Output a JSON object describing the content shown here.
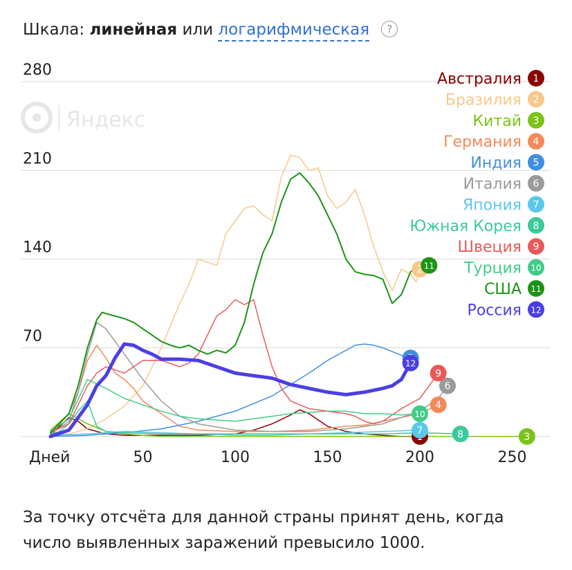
{
  "header": {
    "scale_label": "Шкала:",
    "scale_linear": "линейная",
    "scale_or": "или",
    "scale_log": "логарифмическая",
    "help_icon": "?"
  },
  "watermark": {
    "text": "Яндекс",
    "icon": "yandex-logo-icon"
  },
  "footnote": "За точку отсчёта для данной страны принят день, когда число выявленных заражений превысило 1000.",
  "chart_data": {
    "type": "line",
    "xlabel": "Дней",
    "ylabel": "",
    "xlim": [
      0,
      265
    ],
    "ylim": [
      0,
      280
    ],
    "x_ticks": [
      50,
      100,
      150,
      200,
      250
    ],
    "y_ticks": [
      70,
      140,
      210,
      280
    ],
    "legend_position": "top-right",
    "grid": true,
    "series": [
      {
        "name": "Австралия",
        "number": "1",
        "color": "#8a0000",
        "width": 1.5,
        "x": [
          0,
          5,
          10,
          15,
          20,
          30,
          40,
          60,
          80,
          100,
          110,
          120,
          130,
          135,
          140,
          150,
          160,
          170,
          180,
          190,
          200
        ],
        "y": [
          1,
          8,
          15,
          12,
          6,
          2,
          1,
          1,
          1,
          2,
          5,
          10,
          17,
          21,
          18,
          8,
          4,
          2,
          1,
          0,
          0
        ]
      },
      {
        "name": "Бразилия",
        "number": "2",
        "color": "#f8c88a",
        "width": 1.5,
        "x": [
          0,
          10,
          20,
          30,
          40,
          50,
          60,
          70,
          75,
          80,
          90,
          95,
          100,
          105,
          110,
          115,
          120,
          125,
          130,
          135,
          140,
          145,
          150,
          155,
          160,
          165,
          170,
          175,
          180,
          185,
          190,
          195,
          198,
          200
        ],
        "y": [
          0,
          2,
          6,
          14,
          24,
          40,
          70,
          105,
          120,
          140,
          135,
          160,
          170,
          180,
          182,
          175,
          170,
          205,
          222,
          220,
          210,
          212,
          190,
          180,
          185,
          195,
          175,
          150,
          130,
          115,
          132,
          128,
          122,
          132
        ]
      },
      {
        "name": "Китай",
        "number": "3",
        "color": "#7cc21a",
        "width": 1.5,
        "x": [
          0,
          10,
          20,
          30,
          40,
          50,
          60,
          100,
          150,
          200,
          258
        ],
        "y": [
          5,
          18,
          10,
          4,
          2,
          1,
          0,
          0,
          0,
          0,
          0
        ]
      },
      {
        "name": "Германия",
        "number": "4",
        "color": "#f3895a",
        "width": 1.5,
        "x": [
          0,
          10,
          15,
          20,
          25,
          30,
          35,
          40,
          45,
          50,
          60,
          70,
          80,
          100,
          120,
          140,
          160,
          170,
          180,
          190,
          200,
          210
        ],
        "y": [
          2,
          18,
          35,
          60,
          72,
          62,
          50,
          45,
          38,
          28,
          18,
          8,
          5,
          4,
          4,
          5,
          8,
          9,
          12,
          15,
          18,
          25
        ]
      },
      {
        "name": "Индия",
        "number": "5",
        "color": "#3f8fe0",
        "width": 1.5,
        "x": [
          0,
          20,
          40,
          60,
          80,
          100,
          120,
          140,
          150,
          160,
          165,
          170,
          175,
          180,
          185,
          190,
          195
        ],
        "y": [
          0,
          1,
          3,
          6,
          12,
          20,
          32,
          50,
          60,
          68,
          72,
          73,
          72,
          70,
          67,
          64,
          62
        ]
      },
      {
        "name": "Италия",
        "number": "6",
        "color": "#9a9a9a",
        "width": 1.5,
        "x": [
          0,
          10,
          15,
          20,
          25,
          30,
          35,
          40,
          50,
          60,
          70,
          80,
          100,
          120,
          140,
          160,
          180,
          200,
          210,
          215
        ],
        "y": [
          2,
          12,
          35,
          65,
          90,
          85,
          75,
          65,
          45,
          28,
          16,
          10,
          5,
          4,
          4,
          6,
          10,
          20,
          30,
          40
        ]
      },
      {
        "name": "Япония",
        "number": "7",
        "color": "#5ac8ea",
        "width": 1.5,
        "x": [
          0,
          20,
          40,
          60,
          80,
          100,
          120,
          140,
          160,
          180,
          200
        ],
        "y": [
          1,
          2,
          4,
          3,
          2,
          1,
          1,
          2,
          3,
          4,
          5
        ]
      },
      {
        "name": "Южная Корея",
        "number": "8",
        "color": "#3cc99c",
        "width": 1.5,
        "x": [
          0,
          5,
          10,
          15,
          20,
          25,
          30,
          40,
          60,
          80,
          100,
          120,
          140,
          160,
          180,
          200,
          222
        ],
        "y": [
          2,
          4,
          10,
          20,
          28,
          8,
          4,
          3,
          2,
          2,
          2,
          2,
          2,
          2,
          2,
          3,
          2
        ]
      },
      {
        "name": "Швеция",
        "number": "9",
        "color": "#e85a5a",
        "width": 1.5,
        "x": [
          0,
          10,
          20,
          25,
          30,
          40,
          50,
          60,
          70,
          75,
          80,
          85,
          90,
          95,
          100,
          105,
          110,
          115,
          120,
          125,
          130,
          140,
          150,
          160,
          165,
          170,
          175,
          180,
          190,
          200,
          205,
          210
        ],
        "y": [
          3,
          10,
          40,
          50,
          55,
          50,
          60,
          60,
          55,
          58,
          65,
          80,
          95,
          100,
          108,
          104,
          108,
          80,
          55,
          38,
          28,
          22,
          20,
          18,
          16,
          12,
          10,
          12,
          22,
          30,
          40,
          50
        ]
      },
      {
        "name": "Турция",
        "number": "10",
        "color": "#40cc88",
        "width": 1.5,
        "x": [
          0,
          10,
          20,
          30,
          40,
          50,
          60,
          70,
          80,
          90,
          100,
          110,
          120,
          130,
          140,
          150,
          160,
          170,
          180,
          190,
          200
        ],
        "y": [
          4,
          14,
          45,
          38,
          30,
          25,
          20,
          16,
          14,
          13,
          12,
          14,
          16,
          18,
          19,
          20,
          20,
          18,
          18,
          17,
          18
        ]
      },
      {
        "name": "США",
        "number": "11",
        "color": "#1c9317",
        "width": 2,
        "x": [
          0,
          10,
          15,
          20,
          25,
          28,
          30,
          35,
          40,
          45,
          50,
          55,
          60,
          65,
          70,
          75,
          80,
          85,
          90,
          95,
          100,
          105,
          110,
          115,
          120,
          125,
          130,
          135,
          140,
          145,
          150,
          155,
          160,
          165,
          170,
          175,
          180,
          185,
          190,
          195,
          200,
          205
        ],
        "y": [
          3,
          18,
          40,
          70,
          92,
          98,
          97,
          95,
          93,
          90,
          85,
          80,
          75,
          72,
          70,
          72,
          68,
          65,
          68,
          66,
          72,
          90,
          120,
          145,
          160,
          185,
          203,
          208,
          200,
          190,
          175,
          160,
          140,
          130,
          128,
          127,
          124,
          105,
          112,
          130,
          134,
          135
        ]
      },
      {
        "name": "Россия",
        "number": "12",
        "color": "#4b3fe3",
        "width": 5,
        "x": [
          0,
          10,
          20,
          25,
          30,
          35,
          40,
          45,
          50,
          55,
          60,
          70,
          80,
          90,
          100,
          110,
          120,
          130,
          140,
          150,
          160,
          170,
          180,
          185,
          190,
          195
        ],
        "y": [
          0,
          5,
          25,
          40,
          48,
          62,
          73,
          72,
          68,
          65,
          61,
          61,
          60,
          55,
          50,
          48,
          46,
          41,
          38,
          35,
          33,
          35,
          38,
          40,
          45,
          58
        ]
      }
    ]
  }
}
